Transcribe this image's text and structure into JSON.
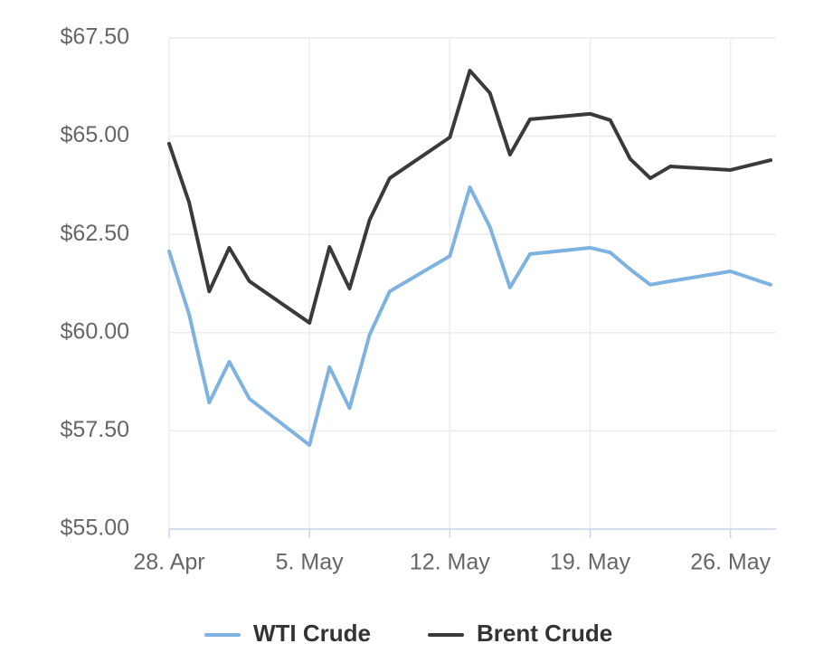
{
  "chart_data": {
    "type": "line",
    "x": [
      "04-28",
      "04-29",
      "04-30",
      "05-01",
      "05-02",
      "05-05",
      "05-06",
      "05-07",
      "05-08",
      "05-09",
      "05-12",
      "05-13",
      "05-14",
      "05-15",
      "05-16",
      "05-19",
      "05-20",
      "05-21",
      "05-22",
      "05-23",
      "05-26",
      "05-28"
    ],
    "series": [
      {
        "name": "WTI Crude",
        "color": "#7eb2e0",
        "values": [
          62.07,
          60.46,
          58.22,
          59.26,
          58.32,
          57.14,
          59.12,
          58.08,
          59.95,
          61.05,
          61.95,
          63.7,
          62.69,
          61.15,
          62.0,
          62.16,
          62.04,
          61.61,
          61.22,
          61.31,
          61.56,
          61.22
        ]
      },
      {
        "name": "Brent Crude",
        "color": "#3a3a3c",
        "values": [
          64.81,
          63.31,
          61.05,
          62.16,
          61.31,
          60.25,
          62.18,
          61.12,
          62.87,
          63.93,
          64.97,
          66.67,
          66.1,
          64.53,
          65.43,
          65.57,
          65.41,
          64.42,
          63.93,
          64.23,
          64.14,
          64.39
        ]
      }
    ],
    "xlim": [
      "04-28",
      "05-28"
    ],
    "xticks": [
      {
        "value": "04-28",
        "label": "28. Apr"
      },
      {
        "value": "05-05",
        "label": "5. May"
      },
      {
        "value": "05-12",
        "label": "12. May"
      },
      {
        "value": "05-19",
        "label": "19. May"
      },
      {
        "value": "05-26",
        "label": "26. May"
      }
    ],
    "ylim": [
      55,
      67.5
    ],
    "yticks": [
      {
        "value": 55,
        "label": "$55.00"
      },
      {
        "value": 57.5,
        "label": "$57.50"
      },
      {
        "value": 60,
        "label": "$60.00"
      },
      {
        "value": 62.5,
        "label": "$62.50"
      },
      {
        "value": 65,
        "label": "$65.00"
      },
      {
        "value": 67.5,
        "label": "$67.50"
      }
    ],
    "grid": true,
    "legend": "bottom"
  }
}
